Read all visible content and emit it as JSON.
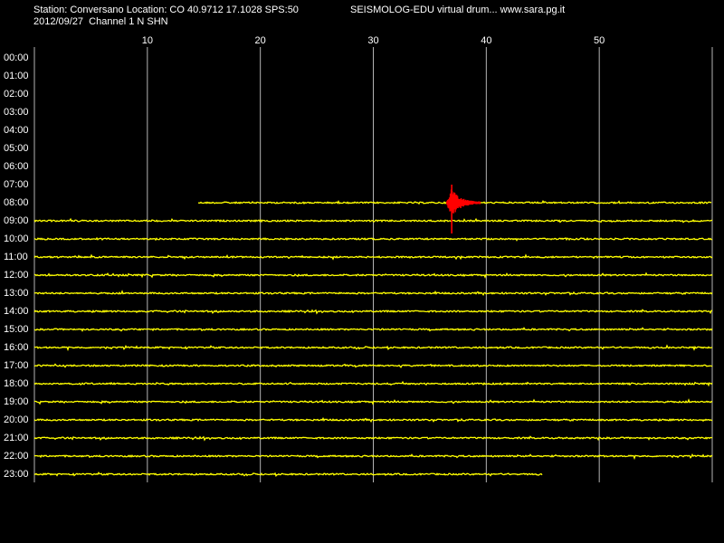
{
  "header": {
    "station_line": "Station: Conversano Location: CO 40.9712 17.1028 SPS:50",
    "brand_line": "SEISMOLOG-EDU virtual drum... www.sara.pg.it",
    "date_line": "2012/09/27  Channel 1 N SHN"
  },
  "chart_data": {
    "type": "line",
    "title": "",
    "xlabel": "",
    "ylabel": "",
    "x_ticks": [
      10,
      20,
      30,
      40,
      50
    ],
    "x_range": [
      0,
      60
    ],
    "rows": [
      "00:00",
      "01:00",
      "02:00",
      "03:00",
      "04:00",
      "05:00",
      "06:00",
      "07:00",
      "08:00",
      "09:00",
      "10:00",
      "11:00",
      "12:00",
      "13:00",
      "14:00",
      "15:00",
      "16:00",
      "17:00",
      "18:00",
      "19:00",
      "20:00",
      "21:00",
      "22:00",
      "23:00"
    ],
    "traces": [
      {
        "row": "08:00",
        "start_min": 14.5,
        "end_min": 60
      },
      {
        "row": "09:00",
        "start_min": 0,
        "end_min": 60
      },
      {
        "row": "10:00",
        "start_min": 0,
        "end_min": 60
      },
      {
        "row": "11:00",
        "start_min": 0,
        "end_min": 60
      },
      {
        "row": "12:00",
        "start_min": 0,
        "end_min": 60
      },
      {
        "row": "13:00",
        "start_min": 0,
        "end_min": 60
      },
      {
        "row": "14:00",
        "start_min": 0,
        "end_min": 60
      },
      {
        "row": "15:00",
        "start_min": 0,
        "end_min": 60
      },
      {
        "row": "16:00",
        "start_min": 0,
        "end_min": 60
      },
      {
        "row": "17:00",
        "start_min": 0,
        "end_min": 60
      },
      {
        "row": "18:00",
        "start_min": 0,
        "end_min": 60
      },
      {
        "row": "19:00",
        "start_min": 0,
        "end_min": 60
      },
      {
        "row": "20:00",
        "start_min": 0,
        "end_min": 60
      },
      {
        "row": "21:00",
        "start_min": 0,
        "end_min": 60
      },
      {
        "row": "22:00",
        "start_min": 0,
        "end_min": 60
      },
      {
        "row": "23:00",
        "start_min": 0,
        "end_min": 45
      }
    ],
    "event": {
      "row": "08:00",
      "start_min": 36.5,
      "end_min": 39.5,
      "peak_min": 36.9,
      "color": "#ff0000"
    },
    "colors": {
      "background": "#000000",
      "grid": "#b4b4b4",
      "trace": "#ffff00",
      "event": "#ff0000",
      "text": "#ffffff"
    }
  }
}
